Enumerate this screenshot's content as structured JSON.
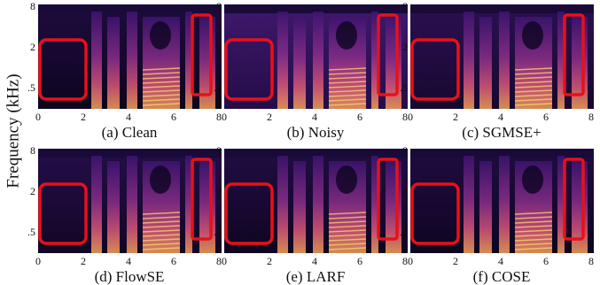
{
  "figure": {
    "ylabel": "Frequency (kHz)",
    "xticks": [
      "0",
      "2",
      "4",
      "6",
      "8"
    ],
    "yticks": [
      "8",
      "2",
      ".5"
    ],
    "panels": [
      {
        "caption": "(a) Clean"
      },
      {
        "caption": "(b) Noisy"
      },
      {
        "caption": "(c) SGMSE+"
      },
      {
        "caption": "(d) FlowSE"
      },
      {
        "caption": "(e) LARF"
      },
      {
        "caption": "(f) COSE"
      }
    ]
  }
}
